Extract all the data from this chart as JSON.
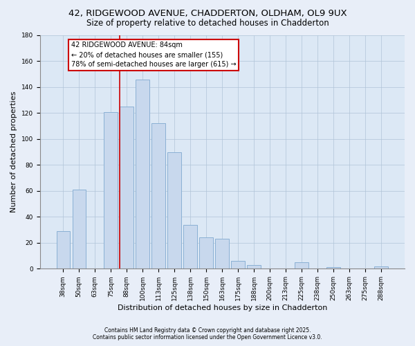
{
  "title": "42, RIDGEWOOD AVENUE, CHADDERTON, OLDHAM, OL9 9UX",
  "subtitle": "Size of property relative to detached houses in Chadderton",
  "xlabel": "Distribution of detached houses by size in Chadderton",
  "ylabel": "Number of detached properties",
  "bar_labels": [
    "38sqm",
    "50sqm",
    "63sqm",
    "75sqm",
    "88sqm",
    "100sqm",
    "113sqm",
    "125sqm",
    "138sqm",
    "150sqm",
    "163sqm",
    "175sqm",
    "188sqm",
    "200sqm",
    "213sqm",
    "225sqm",
    "238sqm",
    "250sqm",
    "263sqm",
    "275sqm",
    "288sqm"
  ],
  "bar_values": [
    29,
    61,
    0,
    121,
    125,
    146,
    112,
    90,
    34,
    24,
    23,
    6,
    3,
    0,
    0,
    5,
    0,
    1,
    0,
    0,
    2
  ],
  "bar_color": "#c8d8ed",
  "bar_edge_color": "#8ab0d4",
  "vline_bar_index": 4,
  "vline_color": "#cc0000",
  "annotation_title": "42 RIDGEWOOD AVENUE: 84sqm",
  "annotation_line2": "← 20% of detached houses are smaller (155)",
  "annotation_line3": "78% of semi-detached houses are larger (615) →",
  "annotation_box_color": "#cc0000",
  "annotation_fill": "#ffffff",
  "ylim": [
    0,
    180
  ],
  "yticks": [
    0,
    20,
    40,
    60,
    80,
    100,
    120,
    140,
    160,
    180
  ],
  "footnote1": "Contains HM Land Registry data © Crown copyright and database right 2025.",
  "footnote2": "Contains public sector information licensed under the Open Government Licence v3.0.",
  "bg_color": "#e8eef8",
  "plot_bg_color": "#dce8f5",
  "title_fontsize": 9.5,
  "subtitle_fontsize": 8.5,
  "tick_fontsize": 6.5,
  "ylabel_fontsize": 8,
  "xlabel_fontsize": 8,
  "annotation_fontsize": 7,
  "footnote_fontsize": 5.5
}
